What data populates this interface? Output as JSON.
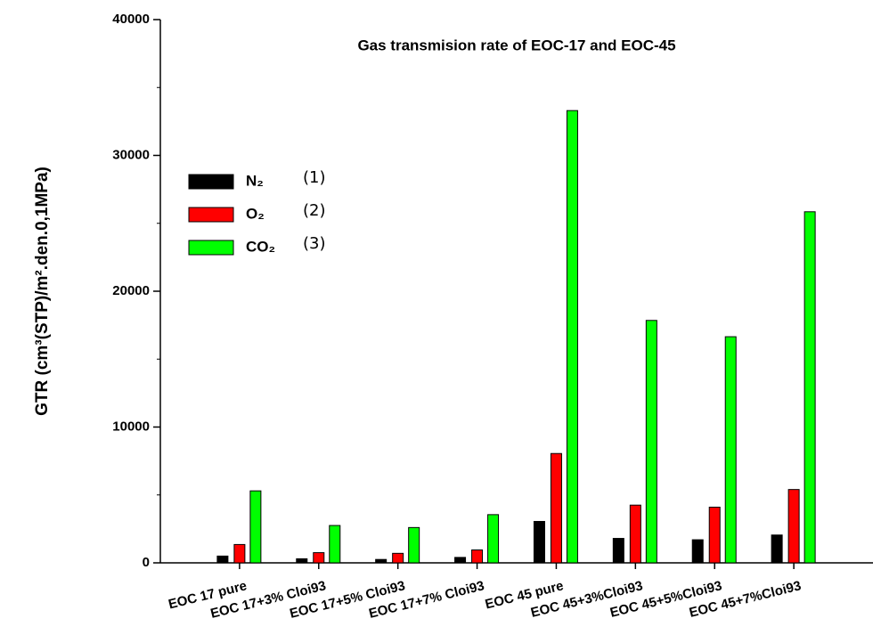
{
  "chart_data": {
    "type": "bar",
    "title": "Gas transmision rate of EOC-17 and EOC-45",
    "ylabel": "GTR (cm³(STP)/m².den.0,1MPa)",
    "categories": [
      "EOC 17 pure",
      "EOC 17+3% Cloi93",
      "EOC 17+5% Cloi93",
      "EOC 17+7% Cloi93",
      "EOC 45 pure",
      "EOC 45+3%Cloi93",
      "EOC 45+5%Cloi93",
      "EOC 45+7%Cloi93"
    ],
    "series": [
      {
        "name": "N₂",
        "color": "#000000",
        "values": [
          500,
          300,
          250,
          400,
          3050,
          1800,
          1700,
          2050
        ]
      },
      {
        "name": "O₂",
        "color": "#ff0000",
        "values": [
          1350,
          750,
          700,
          950,
          8050,
          4250,
          4100,
          5400
        ]
      },
      {
        "name": "CO₂",
        "color": "#00ff00",
        "values": [
          5300,
          2750,
          2600,
          3550,
          33300,
          17850,
          16650,
          25850
        ]
      }
    ],
    "legend_notes": [
      "(1)",
      "(2)",
      "(3)"
    ],
    "ylim": [
      0,
      40000
    ],
    "yticks": [
      0,
      10000,
      20000,
      30000,
      40000
    ],
    "yminor_ticks": [
      5000,
      15000,
      25000,
      35000
    ]
  }
}
